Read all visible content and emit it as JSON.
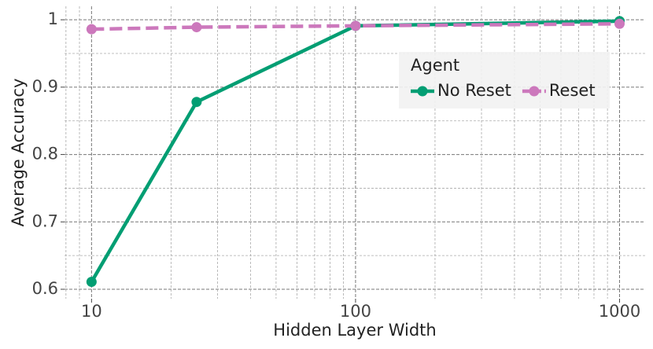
{
  "chart_data": {
    "type": "line",
    "x_label": "Hidden Layer Width",
    "y_label": "Average Accuracy",
    "x": [
      10,
      25,
      100,
      1000
    ],
    "series": [
      {
        "name": "No Reset",
        "color": "#029e73",
        "dash": false,
        "values": [
          0.611,
          0.878,
          0.991,
          0.998
        ]
      },
      {
        "name": "Reset",
        "color": "#cc78bc",
        "dash": true,
        "values": [
          0.986,
          0.989,
          0.991,
          0.994
        ]
      }
    ],
    "xlim": [
      7.9,
      1250
    ],
    "xticks": [
      10,
      100,
      1000
    ],
    "xscale": "log",
    "ylim": [
      0.586,
      1.02
    ],
    "yticks": [
      0.6,
      0.7,
      0.8,
      0.9,
      1
    ],
    "grid": true,
    "legend_title": "Agent",
    "legend": "upper right"
  }
}
